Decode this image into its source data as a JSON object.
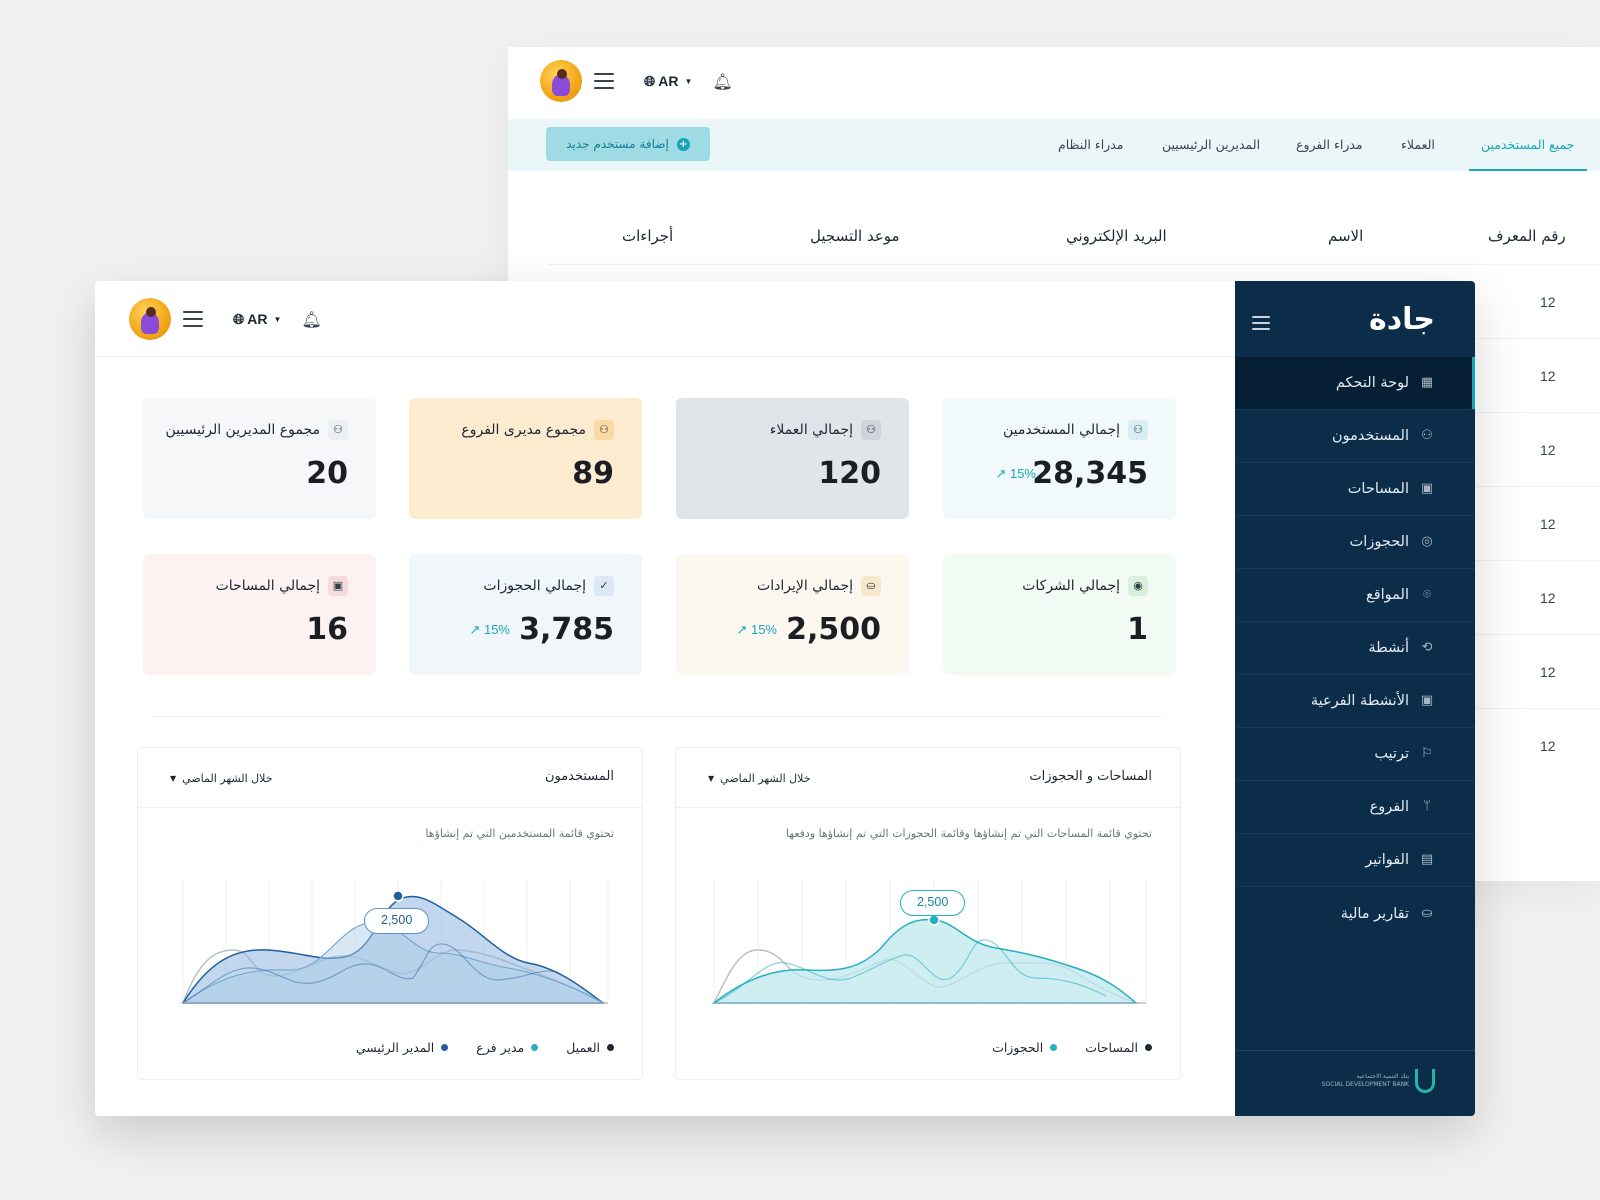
{
  "topbar": {
    "lang": "AR"
  },
  "background_window": {
    "tabs": [
      "جميع المستخدمين",
      "العملاء",
      "مدراء الفروع",
      "المديرين الرئيسيين",
      "مدراء النظام"
    ],
    "add_user_label": "إضافة مستخدم جديد",
    "table": {
      "columns": [
        "رقم المعرف",
        "الاسم",
        "البريد الإلكتروني",
        "موعد التسجيل",
        "أجراءات"
      ],
      "rows": [
        "12",
        "12",
        "12",
        "12",
        "12",
        "12",
        "12"
      ]
    }
  },
  "sidebar": {
    "brand": "جادة",
    "items": [
      {
        "label": "لوحة التحكم",
        "icon": "dashboard-icon",
        "active": true
      },
      {
        "label": "المستخدمون",
        "icon": "users-icon"
      },
      {
        "label": "المساحات",
        "icon": "spaces-icon"
      },
      {
        "label": "الحجوزات",
        "icon": "bookings-icon"
      },
      {
        "label": "المواقع",
        "icon": "location-pin-icon"
      },
      {
        "label": "أنشطة",
        "icon": "activities-icon"
      },
      {
        "label": "الأنشطة الفرعية",
        "icon": "sub-activities-icon"
      },
      {
        "label": "ترتيب",
        "icon": "flag-icon"
      },
      {
        "label": "الفروع",
        "icon": "branch-icon"
      },
      {
        "label": "الفواتير",
        "icon": "invoice-icon"
      },
      {
        "label": "تقارير مالية",
        "icon": "finance-icon"
      }
    ],
    "footer_logo_text": [
      "بنك التنمية الاجتماعية",
      "SOCIAL DEVELOPMENT BANK"
    ]
  },
  "stats": [
    {
      "label": "إجمالي المستخدمين",
      "value": "28,345",
      "trend": "15%",
      "icon": "users-icon",
      "bg": "#f2f9fb",
      "icon_bg": "#d7eef3"
    },
    {
      "label": "إجمالي العملاء",
      "value": "120",
      "icon": "users-icon",
      "bg": "#e1e4e9",
      "icon_bg": "#cfd4db"
    },
    {
      "label": "مجموع مديرى الفروع",
      "value": "89",
      "icon": "users-icon",
      "bg": "#fdecd0",
      "icon_bg": "#fbd9a3"
    },
    {
      "label": "مجموع المديرين الرئيسيين",
      "value": "20",
      "icon": "users-icon",
      "bg": "#f5f7f9",
      "icon_bg": "#eceff3"
    },
    {
      "label": "إجمالي الشركات",
      "value": "1",
      "icon": "target-icon",
      "bg": "#f2fbf3",
      "icon_bg": "#d9f0dc"
    },
    {
      "label": "إجمالي الإيرادات",
      "value": "2,500",
      "trend": "15%",
      "icon": "money-icon",
      "bg": "#fdf8ef",
      "icon_bg": "#f6e8cb"
    },
    {
      "label": "إجمالي الحجوزات",
      "value": "3,785",
      "trend": "15%",
      "icon": "check-circle-icon",
      "bg": "#f1f6fb",
      "icon_bg": "#dce8f4"
    },
    {
      "label": "إجمالي المساحات",
      "value": "16",
      "icon": "spaces-icon",
      "bg": "#fdf2f2",
      "icon_bg": "#f4dcdc"
    }
  ],
  "charts": {
    "spaces_bookings": {
      "title": "المساحات و الحجوزات",
      "period": "خلال الشهر الماضي",
      "subtitle": "تحتوي قائمة المساحات التي تم إنشاؤها وقائمة الحجوزات التي تم إنشاؤها ودفعها",
      "callout": "2,500",
      "legend": [
        {
          "label": "المساحات",
          "color": "#1b2735"
        },
        {
          "label": "الحجوزات",
          "color": "#27b0c0"
        }
      ]
    },
    "users": {
      "title": "المستخدمون",
      "period": "خلال الشهر الماضي",
      "subtitle": "تحتوي قائمة المستخدمين التي تم إنشاؤها",
      "callout": "2,500",
      "legend": [
        {
          "label": "العميل",
          "color": "#1b2735"
        },
        {
          "label": "مدير فرع",
          "color": "#27b0c0"
        },
        {
          "label": "المدير الرئيسي",
          "color": "#1e5f9e"
        }
      ]
    }
  }
}
